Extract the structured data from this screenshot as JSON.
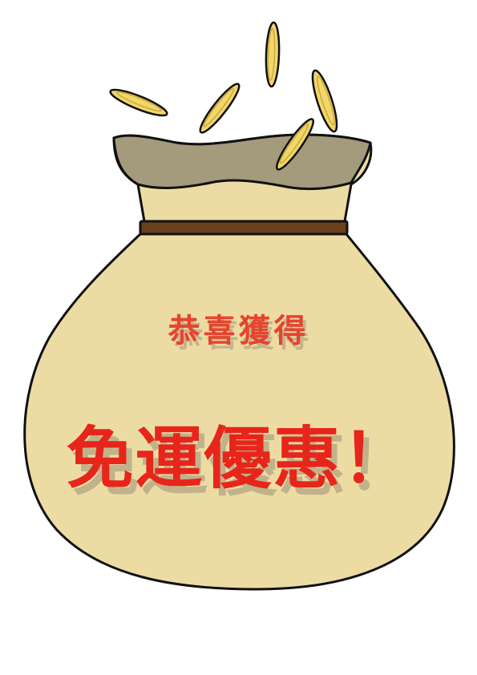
{
  "promo": {
    "line1": "恭喜獲得",
    "line2": "免運優惠！"
  },
  "colors": {
    "bag_body": "#ecdca4",
    "bag_outline": "#111111",
    "bag_inner": "#a49a7c",
    "tie_band": "#6a3f1c",
    "coin": "#f2d66a",
    "text_primary": "#e8251b"
  },
  "icons": [
    "money-bag-icon",
    "coin-icon"
  ]
}
